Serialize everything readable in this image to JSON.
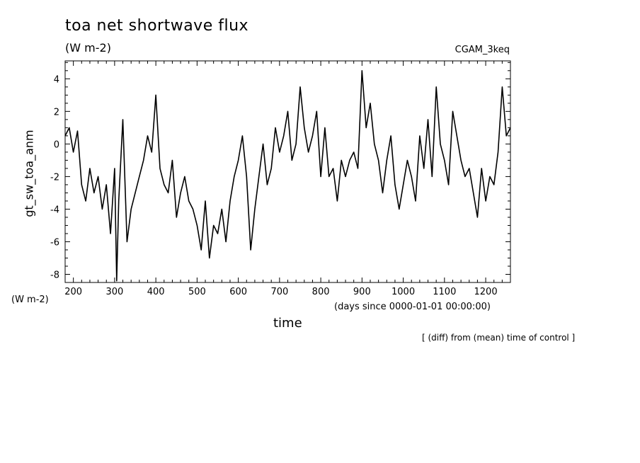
{
  "chart_data": {
    "type": "line",
    "title": "toa net shortwave flux",
    "units": "(W m-2)",
    "run_label": "CGAM_3keq",
    "ylabel": "gt_sw_toa_anm",
    "y_units": "(W m-2)",
    "xlabel": "time",
    "x_units": "(days since 0000-01-01 00:00:00)",
    "note": "[ (diff) from (mean) time of control ]",
    "xlim": [
      180,
      1260
    ],
    "ylim": [
      -8.5,
      5.1
    ],
    "x_ticks": [
      200,
      300,
      400,
      500,
      600,
      700,
      800,
      900,
      1000,
      1100,
      1200
    ],
    "y_ticks": [
      -8,
      -6,
      -4,
      -2,
      0,
      2,
      4
    ],
    "grid": false,
    "series": [
      {
        "color": "#000000",
        "x": [
          180,
          190,
          200,
          210,
          220,
          230,
          240,
          250,
          260,
          270,
          280,
          290,
          300,
          305,
          310,
          320,
          330,
          340,
          350,
          360,
          370,
          380,
          390,
          400,
          410,
          420,
          430,
          440,
          450,
          460,
          470,
          480,
          490,
          500,
          510,
          520,
          530,
          540,
          550,
          560,
          570,
          580,
          590,
          600,
          610,
          620,
          630,
          640,
          650,
          660,
          670,
          680,
          690,
          700,
          710,
          720,
          730,
          740,
          750,
          760,
          770,
          780,
          790,
          800,
          810,
          820,
          830,
          840,
          850,
          860,
          870,
          880,
          890,
          900,
          910,
          920,
          930,
          940,
          950,
          960,
          970,
          980,
          990,
          1000,
          1010,
          1020,
          1030,
          1040,
          1050,
          1060,
          1070,
          1080,
          1090,
          1100,
          1110,
          1120,
          1130,
          1140,
          1150,
          1160,
          1170,
          1180,
          1190,
          1200,
          1210,
          1220,
          1230,
          1240,
          1250,
          1260
        ],
        "y": [
          0.5,
          1.0,
          -0.5,
          0.8,
          -2.5,
          -3.5,
          -1.5,
          -3.0,
          -2.0,
          -4.0,
          -2.5,
          -5.5,
          -1.5,
          -8.4,
          -3.5,
          1.5,
          -6.0,
          -4.0,
          -3.0,
          -2.0,
          -1.0,
          0.5,
          -0.5,
          3.0,
          -1.5,
          -2.5,
          -3.0,
          -1.0,
          -4.5,
          -3.0,
          -2.0,
          -3.5,
          -4.0,
          -5.0,
          -6.5,
          -3.5,
          -7.0,
          -5.0,
          -5.5,
          -4.0,
          -6.0,
          -3.5,
          -2.0,
          -1.0,
          0.5,
          -2.0,
          -6.5,
          -4.0,
          -2.0,
          0.0,
          -2.5,
          -1.5,
          1.0,
          -0.5,
          0.5,
          2.0,
          -1.0,
          0.0,
          3.5,
          1.0,
          -0.5,
          0.5,
          2.0,
          -2.0,
          1.0,
          -2.0,
          -1.5,
          -3.5,
          -1.0,
          -2.0,
          -1.0,
          -0.5,
          -1.5,
          4.5,
          1.0,
          2.5,
          0.0,
          -1.0,
          -3.0,
          -1.0,
          0.5,
          -2.5,
          -4.0,
          -2.5,
          -1.0,
          -2.0,
          -3.5,
          0.5,
          -1.5,
          1.5,
          -2.0,
          3.5,
          0.0,
          -1.0,
          -2.5,
          2.0,
          0.5,
          -1.0,
          -2.0,
          -1.5,
          -3.0,
          -4.5,
          -1.5,
          -3.5,
          -2.0,
          -2.5,
          -0.5,
          3.5,
          0.5,
          1.0
        ]
      }
    ]
  }
}
